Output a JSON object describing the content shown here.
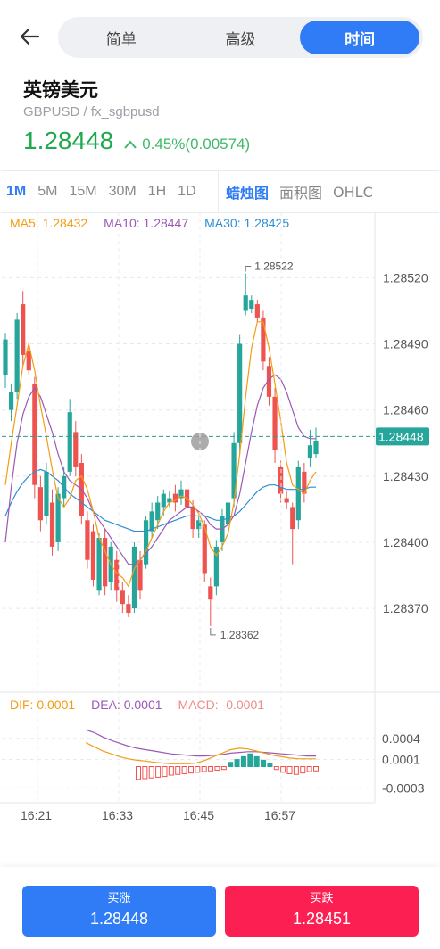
{
  "header": {
    "tabs": [
      {
        "label": "简单",
        "active": false
      },
      {
        "label": "高级",
        "active": false
      },
      {
        "label": "时间",
        "active": true
      }
    ],
    "pair_name": "英镑美元",
    "pair_code": "GBPUSD / fx_sgbpusd",
    "price": "1.28448",
    "change": "0.45%(0.00574)",
    "price_color": "#1fa84d"
  },
  "toolbar": {
    "periods": [
      {
        "label": "1M",
        "active": true
      },
      {
        "label": "5M",
        "active": false
      },
      {
        "label": "15M",
        "active": false
      },
      {
        "label": "30M",
        "active": false
      },
      {
        "label": "1H",
        "active": false
      },
      {
        "label": "1D",
        "active": false
      }
    ],
    "chart_types": [
      {
        "label": "蜡烛图",
        "active": true
      },
      {
        "label": "面积图",
        "active": false
      },
      {
        "label": "OHLC",
        "active": false
      }
    ]
  },
  "ma_legend": {
    "ma5": "MA5: 1.28432",
    "ma10": "MA10: 1.28447",
    "ma30": "MA30: 1.28425",
    "colors": {
      "ma5": "#f39c12",
      "ma10": "#9b59b6",
      "ma30": "#2b8fd6"
    }
  },
  "macd_legend": {
    "dif": "DIF: 0.0001",
    "dea": "DEA: 0.0001",
    "macd": "MACD: -0.0001",
    "colors": {
      "dif": "#f39c12",
      "dea": "#9b59b6",
      "macd": "#f08a8a"
    }
  },
  "colors": {
    "up": "#26a69a",
    "down": "#ef5350",
    "accent": "#2f7cf6",
    "sell": "#fb1f52"
  },
  "chart_data": {
    "type": "candlestick",
    "price_axis": {
      "ticks": [
        "1.28520",
        "1.28490",
        "1.28460",
        "1.28430",
        "1.28400",
        "1.28370"
      ],
      "ylim": [
        1.28332,
        1.2854
      ]
    },
    "time_axis": {
      "ticks": [
        "16:21",
        "16:33",
        "16:45",
        "16:57"
      ]
    },
    "current_price_label": "1.28448",
    "current_price": 1.28448,
    "high_annotation": "1.28522",
    "low_annotation": "1.28362",
    "candles": [
      [
        1.28476,
        1.28492,
        1.2847,
        1.28495
      ],
      [
        1.2846,
        1.28468,
        1.28455,
        1.28472
      ],
      [
        1.28468,
        1.28501,
        1.28465,
        1.28504
      ],
      [
        1.28508,
        1.28485,
        1.2848,
        1.28514
      ],
      [
        1.28487,
        1.28478,
        1.28476,
        1.28491
      ],
      [
        1.28472,
        1.28426,
        1.2842,
        1.28475
      ],
      [
        1.28425,
        1.2841,
        1.28405,
        1.2843
      ],
      [
        1.28412,
        1.28432,
        1.28408,
        1.28436
      ],
      [
        1.28418,
        1.28398,
        1.28394,
        1.28424
      ],
      [
        1.284,
        1.28422,
        1.28396,
        1.28425
      ],
      [
        1.2842,
        1.2843,
        1.28416,
        1.28434
      ],
      [
        1.28432,
        1.28459,
        1.2843,
        1.28465
      ],
      [
        1.2845,
        1.28434,
        1.2843,
        1.28455
      ],
      [
        1.28436,
        1.28412,
        1.28408,
        1.2844
      ],
      [
        1.2841,
        1.28392,
        1.28388,
        1.28414
      ],
      [
        1.28405,
        1.28383,
        1.2838,
        1.28408
      ],
      [
        1.28378,
        1.28402,
        1.28376,
        1.28404
      ],
      [
        1.28402,
        1.2838,
        1.28376,
        1.28406
      ],
      [
        1.28382,
        1.28398,
        1.28378,
        1.284
      ],
      [
        1.28392,
        1.28378,
        1.28373,
        1.28396
      ],
      [
        1.28378,
        1.28372,
        1.28368,
        1.28382
      ],
      [
        1.28372,
        1.28368,
        1.28366,
        1.28376
      ],
      [
        1.2837,
        1.28398,
        1.28368,
        1.284
      ],
      [
        1.28392,
        1.28378,
        1.28374,
        1.28396
      ],
      [
        1.2839,
        1.2841,
        1.28388,
        1.28412
      ],
      [
        1.28405,
        1.28414,
        1.28402,
        1.28418
      ],
      [
        1.2841,
        1.28418,
        1.28406,
        1.28421
      ],
      [
        1.28416,
        1.28422,
        1.28412,
        1.28424
      ],
      [
        1.28418,
        1.2842,
        1.28416,
        1.28423
      ],
      [
        1.28422,
        1.28418,
        1.28414,
        1.28426
      ],
      [
        1.2842,
        1.28424,
        1.28417,
        1.28428
      ],
      [
        1.28424,
        1.28416,
        1.28412,
        1.28427
      ],
      [
        1.28416,
        1.28406,
        1.28402,
        1.28419
      ],
      [
        1.28406,
        1.2841,
        1.28402,
        1.28412
      ],
      [
        1.28408,
        1.28386,
        1.28382,
        1.2841
      ],
      [
        1.2838,
        1.28374,
        1.28362,
        1.28384
      ],
      [
        1.2838,
        1.28398,
        1.28376,
        1.28401
      ],
      [
        1.284,
        1.28412,
        1.28396,
        1.28415
      ],
      [
        1.28408,
        1.28418,
        1.28404,
        1.28422
      ],
      [
        1.2842,
        1.28445,
        1.28416,
        1.2845
      ],
      [
        1.28445,
        1.2849,
        1.2844,
        1.28494
      ],
      [
        1.28505,
        1.28512,
        1.28503,
        1.28522
      ],
      [
        1.28506,
        1.2851,
        1.28504,
        1.28512
      ],
      [
        1.28508,
        1.28502,
        1.285,
        1.2851
      ],
      [
        1.28502,
        1.28482,
        1.28478,
        1.28505
      ],
      [
        1.2848,
        1.28466,
        1.28462,
        1.28484
      ],
      [
        1.28466,
        1.28442,
        1.28436,
        1.2847
      ],
      [
        1.28434,
        1.28422,
        1.28418,
        1.28437
      ],
      [
        1.2842,
        1.28418,
        1.28415,
        1.28423
      ],
      [
        1.28416,
        1.28406,
        1.2839,
        1.28418
      ],
      [
        1.2841,
        1.28434,
        1.28406,
        1.28437
      ],
      [
        1.28432,
        1.28422,
        1.28418,
        1.28436
      ],
      [
        1.28438,
        1.28444,
        1.28434,
        1.28451
      ],
      [
        1.2844,
        1.28446,
        1.28438,
        1.28452
      ]
    ],
    "ma5": [
      1.28426,
      1.28445,
      1.28462,
      1.2848,
      1.2849,
      1.28478,
      1.28462,
      1.28448,
      1.28433,
      1.2842,
      1.28416,
      1.2842,
      1.28428,
      1.2843,
      1.28424,
      1.28414,
      1.28402,
      1.28396,
      1.2839,
      1.28386,
      1.28384,
      1.2838,
      1.28388,
      1.28392,
      1.28396,
      1.28402,
      1.28408,
      1.28414,
      1.28418,
      1.28419,
      1.28421,
      1.2842,
      1.28417,
      1.28413,
      1.28407,
      1.28398,
      1.28394,
      1.28398,
      1.28404,
      1.28418,
      1.2844,
      1.28466,
      1.28488,
      1.285,
      1.285,
      1.28488,
      1.28472,
      1.28455,
      1.28436,
      1.28426,
      1.28424,
      1.28422,
      1.28428,
      1.28432
    ],
    "ma10": [
      1.284,
      1.28425,
      1.28445,
      1.28458,
      1.28466,
      1.2847,
      1.28466,
      1.28458,
      1.2845,
      1.2844,
      1.28432,
      1.28428,
      1.28426,
      1.28424,
      1.2842,
      1.28414,
      1.2841,
      1.28406,
      1.28402,
      1.28398,
      1.28394,
      1.2839,
      1.2839,
      1.28392,
      1.28395,
      1.28398,
      1.28402,
      1.28406,
      1.2841,
      1.28412,
      1.28414,
      1.28416,
      1.28416,
      1.28414,
      1.28412,
      1.28408,
      1.28406,
      1.28406,
      1.28408,
      1.28412,
      1.28422,
      1.28436,
      1.2845,
      1.28462,
      1.2847,
      1.28474,
      1.28476,
      1.28474,
      1.28468,
      1.2846,
      1.28452,
      1.28448,
      1.28447,
      1.28447
    ],
    "ma30": [
      1.28412,
      1.28418,
      1.28423,
      1.28427,
      1.2843,
      1.28432,
      1.28433,
      1.28432,
      1.2843,
      1.28428,
      1.28425,
      1.28422,
      1.2842,
      1.28418,
      1.28416,
      1.28414,
      1.28412,
      1.2841,
      1.28409,
      1.28408,
      1.28407,
      1.28406,
      1.28405,
      1.28405,
      1.28405,
      1.28406,
      1.28407,
      1.28408,
      1.28409,
      1.2841,
      1.28411,
      1.28412,
      1.28412,
      1.28412,
      1.28412,
      1.28411,
      1.2841,
      1.2841,
      1.28411,
      1.28412,
      1.28414,
      1.28417,
      1.2842,
      1.28423,
      1.28425,
      1.28426,
      1.28426,
      1.28425,
      1.28424,
      1.28424,
      1.28424,
      1.28424,
      1.28425,
      1.28425
    ],
    "macd_axis": {
      "ticks": [
        "0.0004",
        "0.0001",
        "-0.0003"
      ],
      "ylim": [
        -0.00046,
        0.00075
      ]
    },
    "macd_hist": [
      -0.00018,
      -0.00017,
      -0.00016,
      -0.00015,
      -0.00014,
      -0.00012,
      -0.00011,
      -0.0001,
      -9e-05,
      -8e-05,
      -7e-05,
      -6e-05,
      -5e-05,
      -4e-05,
      6e-05,
      0.0001,
      0.00014,
      0.00018,
      0.00014,
      9e-05,
      4e-05,
      -4e-05,
      -8e-05,
      -0.0001,
      -0.00011,
      -9e-05,
      -7e-05,
      -6e-05
    ],
    "dif": [
      0.00034,
      0.00028,
      0.00022,
      0.00018,
      0.00014,
      0.00011,
      9e-05,
      8e-05,
      6e-05,
      5e-05,
      4e-05,
      4e-05,
      4e-05,
      5e-05,
      9e-05,
      0.00014,
      0.00019,
      0.00024,
      0.00026,
      0.00025,
      0.00022,
      0.00019,
      0.00016,
      0.00014,
      0.00012,
      0.00011,
      0.00011,
      0.00011
    ],
    "dea": [
      0.00052,
      0.00048,
      0.00042,
      0.00037,
      0.00033,
      0.00029,
      0.00026,
      0.00024,
      0.00022,
      0.0002,
      0.00018,
      0.00017,
      0.00016,
      0.00015,
      0.00015,
      0.00016,
      0.00017,
      0.00019,
      0.0002,
      0.00021,
      0.00021,
      0.0002,
      0.00019,
      0.00018,
      0.00017,
      0.00016,
      0.00015,
      0.00015
    ]
  },
  "trade": {
    "buy_label": "买涨",
    "buy_price": "1.28448",
    "sell_label": "买跌",
    "sell_price": "1.28451"
  }
}
